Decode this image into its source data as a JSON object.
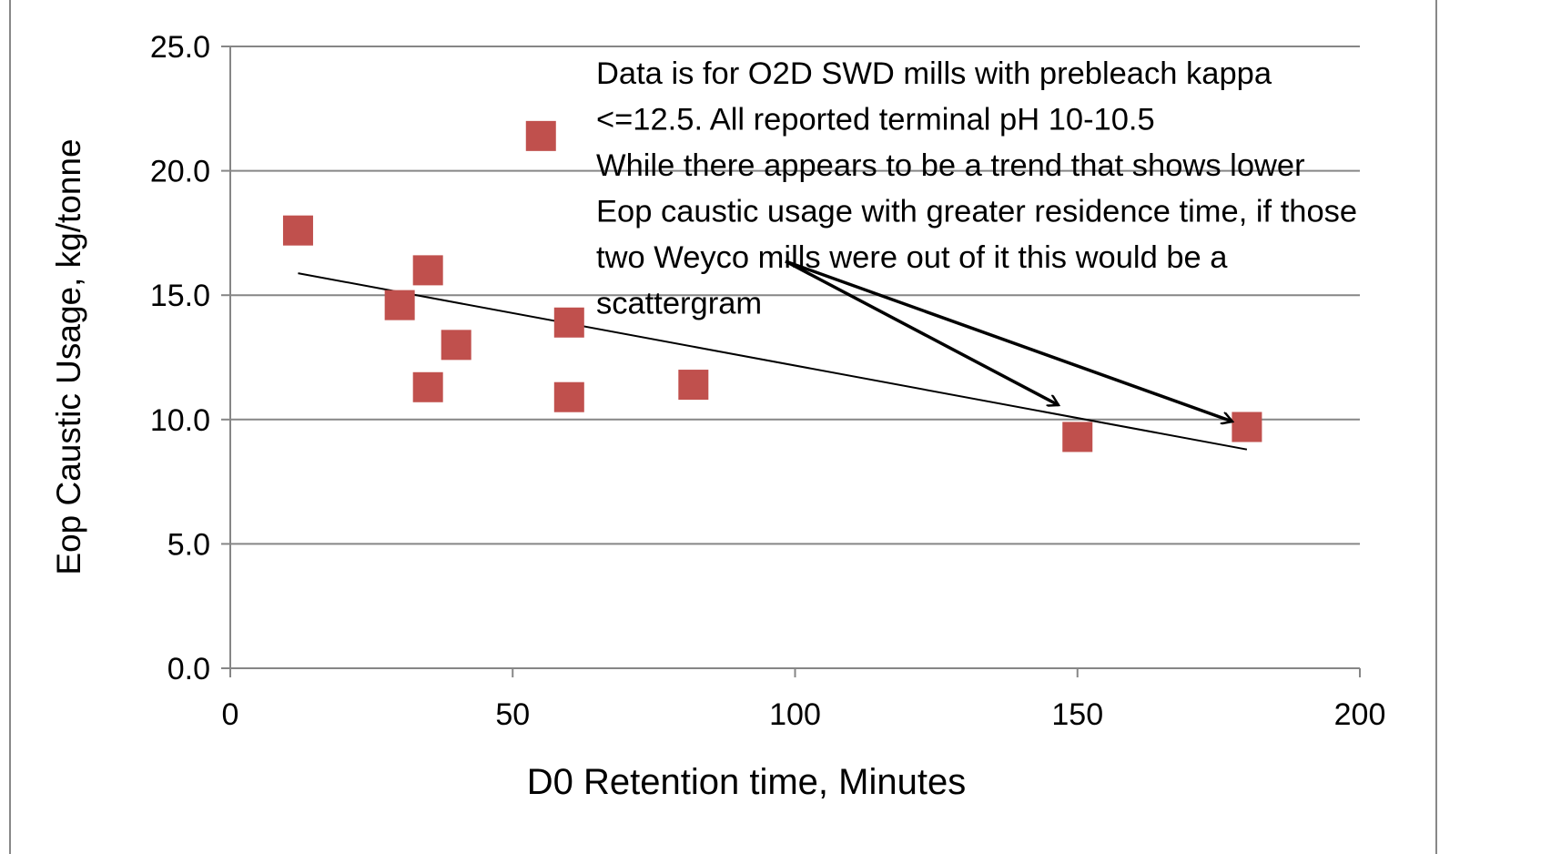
{
  "chart_data": {
    "type": "scatter",
    "x_label": "D0 Retention time, Minutes",
    "y_label": "Eop Caustic Usage, kg/tonne",
    "x": [
      12,
      30,
      35,
      35,
      40,
      55,
      60,
      60,
      82,
      150,
      180
    ],
    "values": [
      17.6,
      14.6,
      16.0,
      11.3,
      13.0,
      21.4,
      13.9,
      10.9,
      11.4,
      9.3,
      9.7
    ],
    "color": "#c0504d",
    "trendline": "linear",
    "xlim": [
      0,
      200
    ],
    "xticks": [
      0,
      50,
      100,
      150,
      200
    ],
    "ylim": [
      0,
      25
    ],
    "yticks": [
      {
        "value": 0,
        "label": "0.0"
      },
      {
        "value": 5,
        "label": "5.0"
      },
      {
        "value": 10,
        "label": "10.0"
      },
      {
        "value": 15,
        "label": "15.0"
      },
      {
        "value": 20,
        "label": "20.0"
      },
      {
        "value": 25,
        "label": "25.0"
      }
    ],
    "grid": true,
    "annotation": [
      "Data is for O2D SWD mills with prebleach kappa",
      "<=12.5.  All reported terminal pH 10-10.5",
      "While there appears to be a trend that shows lower",
      "Eop caustic usage with greater residence time, if those",
      "two Weyco mills were out of it this would be a",
      "scattergram"
    ]
  }
}
